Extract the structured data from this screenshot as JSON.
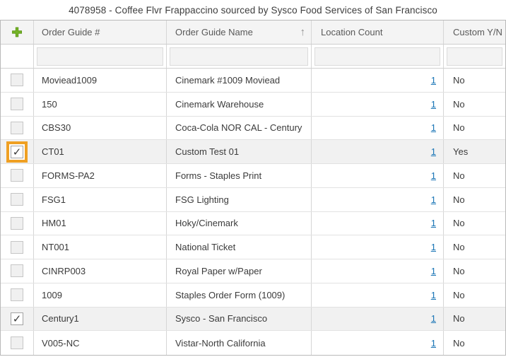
{
  "title": "4078958 - Coffee Flvr Frappaccino sourced by Sysco Food Services of San Francisco",
  "icons": {
    "add": "✚",
    "sort_ascending": "↑",
    "check": "✓"
  },
  "colors": {
    "add_button_green": "#74b327",
    "checkbox_highlight_orange": "#efa023",
    "link_blue": "#1874b5",
    "header_bg": "#f4f4f4",
    "selected_row_bg": "#f1f1f1"
  },
  "table": {
    "columns": {
      "order_guide_number": "Order Guide #",
      "order_guide_name": "Order Guide Name",
      "location_count": "Location Count",
      "custom_yn": "Custom Y/N"
    },
    "sorted_column": "order_guide_name",
    "sort_direction": "ascending",
    "filters": {
      "order_guide_number": "",
      "order_guide_name": "",
      "location_count": "",
      "custom_yn": ""
    },
    "rows": [
      {
        "order_guide_number": "Moviead1009",
        "order_guide_name": "Cinemark #1009 Moviead",
        "location_count": "1",
        "custom_yn": "No",
        "checked": false,
        "selected": false,
        "checkbox_highlighted": false
      },
      {
        "order_guide_number": "150",
        "order_guide_name": "Cinemark Warehouse",
        "location_count": "1",
        "custom_yn": "No",
        "checked": false,
        "selected": false,
        "checkbox_highlighted": false
      },
      {
        "order_guide_number": "CBS30",
        "order_guide_name": "Coca-Cola NOR CAL - Century",
        "location_count": "1",
        "custom_yn": "No",
        "checked": false,
        "selected": false,
        "checkbox_highlighted": false
      },
      {
        "order_guide_number": "CT01",
        "order_guide_name": "Custom Test 01",
        "location_count": "1",
        "custom_yn": "Yes",
        "checked": true,
        "selected": true,
        "checkbox_highlighted": true
      },
      {
        "order_guide_number": "FORMS-PA2",
        "order_guide_name": "Forms - Staples Print",
        "location_count": "1",
        "custom_yn": "No",
        "checked": false,
        "selected": false,
        "checkbox_highlighted": false
      },
      {
        "order_guide_number": "FSG1",
        "order_guide_name": "FSG Lighting",
        "location_count": "1",
        "custom_yn": "No",
        "checked": false,
        "selected": false,
        "checkbox_highlighted": false
      },
      {
        "order_guide_number": "HM01",
        "order_guide_name": "Hoky/Cinemark",
        "location_count": "1",
        "custom_yn": "No",
        "checked": false,
        "selected": false,
        "checkbox_highlighted": false
      },
      {
        "order_guide_number": "NT001",
        "order_guide_name": "National Ticket",
        "location_count": "1",
        "custom_yn": "No",
        "checked": false,
        "selected": false,
        "checkbox_highlighted": false
      },
      {
        "order_guide_number": "CINRP003",
        "order_guide_name": "Royal Paper w/Paper",
        "location_count": "1",
        "custom_yn": "No",
        "checked": false,
        "selected": false,
        "checkbox_highlighted": false
      },
      {
        "order_guide_number": "1009",
        "order_guide_name": "Staples Order Form (1009)",
        "location_count": "1",
        "custom_yn": "No",
        "checked": false,
        "selected": false,
        "checkbox_highlighted": false
      },
      {
        "order_guide_number": "Century1",
        "order_guide_name": "Sysco - San Francisco",
        "location_count": "1",
        "custom_yn": "No",
        "checked": true,
        "selected": true,
        "checkbox_highlighted": false
      },
      {
        "order_guide_number": "V005-NC",
        "order_guide_name": "Vistar-North California",
        "location_count": "1",
        "custom_yn": "No",
        "checked": false,
        "selected": false,
        "checkbox_highlighted": false
      }
    ]
  }
}
